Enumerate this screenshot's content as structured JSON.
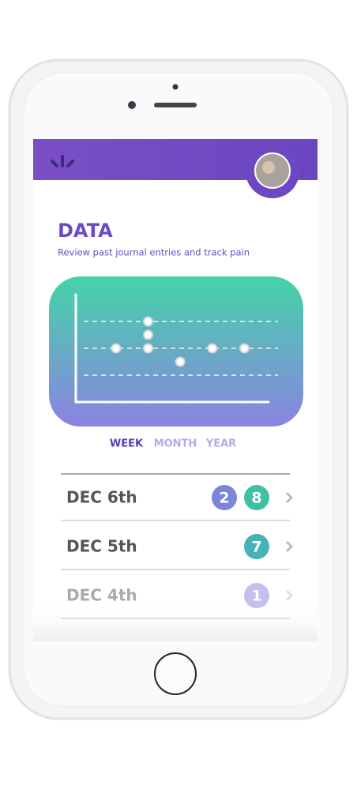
{
  "header": {
    "screen": "journal-data"
  },
  "page": {
    "title": "DATA",
    "subtitle": "Review past journal entries and track pain"
  },
  "chart_data": {
    "type": "scatter",
    "x": [
      1,
      2,
      2,
      2,
      3,
      4,
      5
    ],
    "values": [
      2,
      3,
      2.5,
      2,
      1.5,
      2,
      2
    ],
    "xlim": [
      -0.25,
      5.75
    ],
    "ylim": [
      0,
      4
    ],
    "yticks": [
      1,
      2,
      3
    ],
    "grid": true,
    "color": "#ffffff"
  },
  "tabs": [
    "WEEK",
    "MONTH",
    "YEAR"
  ],
  "entries": [
    {
      "date": "DEC 6th",
      "badges": [
        {
          "value": 2,
          "color": "#7b86d9"
        },
        {
          "value": 8,
          "color": "#3fbfa6"
        }
      ]
    },
    {
      "date": "DEC 5th",
      "badges": [
        {
          "value": 7,
          "color": "#46b1b6"
        }
      ]
    },
    {
      "date": "DEC 4th",
      "badges": [
        {
          "value": 1,
          "color": "#c3c0ef"
        }
      ]
    }
  ]
}
